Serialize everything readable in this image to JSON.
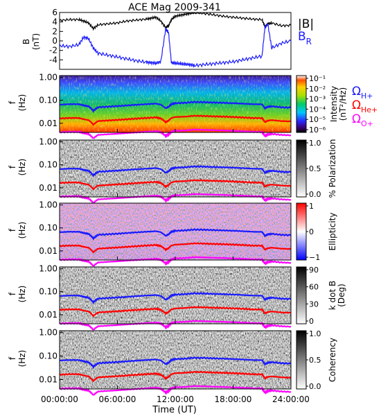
{
  "title": "ACE Mag 2009-341",
  "xlabel": "Time (UT)",
  "x_ticks": [
    "00:00:00",
    "06:00:00",
    "12:00:00",
    "18:00:00",
    "24:00:00"
  ],
  "x_range_hours": [
    0,
    24
  ],
  "colors": {
    "total": "#000000",
    "radial": "#1a1aff",
    "h_plus": "#1a1aff",
    "he_plus": "#ff0000",
    "o_plus": "#ff00ff"
  },
  "chart_data": [
    {
      "type": "line",
      "panel": "magnetic field",
      "ylabel": "B",
      "yunit": "(nT)",
      "ylim": [
        -6,
        6
      ],
      "yticks": [
        "6",
        "4",
        "2",
        "0",
        "-2",
        "-4"
      ],
      "legend": [
        {
          "label": "|B|",
          "color": "#000000"
        },
        {
          "label": "B",
          "sub": "R",
          "color": "#1a1aff"
        }
      ],
      "x": [
        0,
        1,
        2,
        2.5,
        3,
        3.5,
        4,
        5,
        6,
        7,
        8,
        9,
        9.5,
        10,
        10.5,
        11,
        11.3,
        11.6,
        12,
        12.5,
        13,
        13.5,
        14,
        15,
        16,
        17,
        18,
        19,
        20,
        21,
        21.3,
        21.6,
        22,
        23,
        24
      ],
      "series": [
        {
          "name": "|B|",
          "values": [
            4.3,
            4.5,
            4.5,
            4.2,
            3.8,
            2.6,
            3.4,
            3.6,
            3.8,
            4.2,
            4.4,
            4.6,
            4.8,
            5.0,
            4.2,
            2.8,
            3.2,
            4.5,
            5.2,
            5.4,
            5.6,
            5.8,
            6.0,
            5.8,
            5.5,
            5.2,
            5.0,
            4.8,
            4.6,
            4.5,
            3.0,
            3.6,
            3.8,
            3.2,
            3.3
          ]
        },
        {
          "name": "BR",
          "values": [
            -1.0,
            -1.2,
            -0.8,
            0.8,
            0.5,
            -1.5,
            -2.6,
            -3.0,
            -3.4,
            -3.8,
            -4.2,
            -4.5,
            -4.6,
            -4.7,
            -4.4,
            2.5,
            1.8,
            -4.6,
            -4.7,
            -4.8,
            -4.9,
            -5.0,
            -5.2,
            -5.0,
            -4.8,
            -4.6,
            -4.4,
            -4.0,
            -3.6,
            -3.2,
            2.8,
            3.6,
            -1.5,
            -0.5,
            0.0
          ]
        }
      ]
    },
    {
      "type": "heatmap",
      "panel": "intensity",
      "ylabel": "f",
      "yunit": "(Hz)",
      "yticks": [
        "1.00",
        "0.10",
        "0.01"
      ],
      "ylim": [
        0.004,
        1.2
      ],
      "colorbar_label": "Intensity",
      "colorbar_unit": "(nT²/Hz)",
      "colorbar_range": [
        1e-06,
        0.1
      ],
      "colorbar_ticks": [
        "10⁻¹",
        "10⁻²",
        "10⁻³",
        "10⁻⁴",
        "10⁻⁵",
        "10⁻⁶"
      ],
      "colorbar_scale": "rainbow"
    },
    {
      "type": "heatmap",
      "panel": "polarization",
      "ylabel": "f",
      "yunit": "(Hz)",
      "yticks": [
        "1.00",
        "0.10",
        "0.01"
      ],
      "colorbar_label": "% Polarization",
      "colorbar_range": [
        0,
        1
      ],
      "colorbar_ticks": [
        "1.0",
        "0.5",
        "0.0"
      ],
      "colorbar_scale": "gray"
    },
    {
      "type": "heatmap",
      "panel": "ellipticity",
      "ylabel": "f",
      "yunit": "(Hz)",
      "yticks": [
        "1.00",
        "0.10",
        "0.01"
      ],
      "colorbar_label": "Ellipticity",
      "colorbar_range": [
        -1,
        1
      ],
      "colorbar_ticks": [
        "1",
        "0",
        "−1"
      ],
      "colorbar_scale": "blue-white-red"
    },
    {
      "type": "heatmap",
      "panel": "wave normal angle",
      "ylabel": "f",
      "yunit": "(Hz)",
      "yticks": [
        "1.00",
        "0.10",
        "0.01"
      ],
      "colorbar_label": "k dot B",
      "colorbar_unit": "(Deg)",
      "colorbar_range": [
        0,
        90
      ],
      "colorbar_ticks": [
        "90",
        "60",
        "30",
        "0"
      ],
      "colorbar_scale": "gray"
    },
    {
      "type": "heatmap",
      "panel": "coherency",
      "ylabel": "f",
      "yunit": "(Hz)",
      "yticks": [
        "1.00",
        "0.10",
        "0.01"
      ],
      "colorbar_label": "Coherency",
      "colorbar_range": [
        0,
        1
      ],
      "colorbar_ticks": [
        "1.0",
        "0.5",
        "0.0"
      ],
      "colorbar_scale": "gray"
    }
  ],
  "gyrofrequency_legend": [
    {
      "symbol": "Ω",
      "sub": "H+",
      "color": "#1a1aff"
    },
    {
      "symbol": "Ω",
      "sub": "He+",
      "color": "#ff0000"
    },
    {
      "symbol": "Ω",
      "sub": "O+",
      "color": "#ff00ff"
    }
  ],
  "gyrofrequency_curves": {
    "x": [
      0,
      1,
      2,
      2.5,
      3,
      3.5,
      4,
      5,
      6,
      7,
      8,
      9,
      10,
      10.5,
      11,
      11.3,
      11.6,
      12,
      13,
      14,
      15,
      16,
      17,
      18,
      19,
      20,
      21,
      21.3,
      21.6,
      22,
      23,
      24
    ],
    "h_plus_hz": [
      0.065,
      0.068,
      0.068,
      0.06,
      0.055,
      0.035,
      0.05,
      0.053,
      0.056,
      0.06,
      0.064,
      0.068,
      0.072,
      0.065,
      0.045,
      0.052,
      0.068,
      0.075,
      0.078,
      0.085,
      0.083,
      0.08,
      0.078,
      0.075,
      0.072,
      0.068,
      0.067,
      0.045,
      0.052,
      0.055,
      0.05,
      0.048
    ]
  }
}
